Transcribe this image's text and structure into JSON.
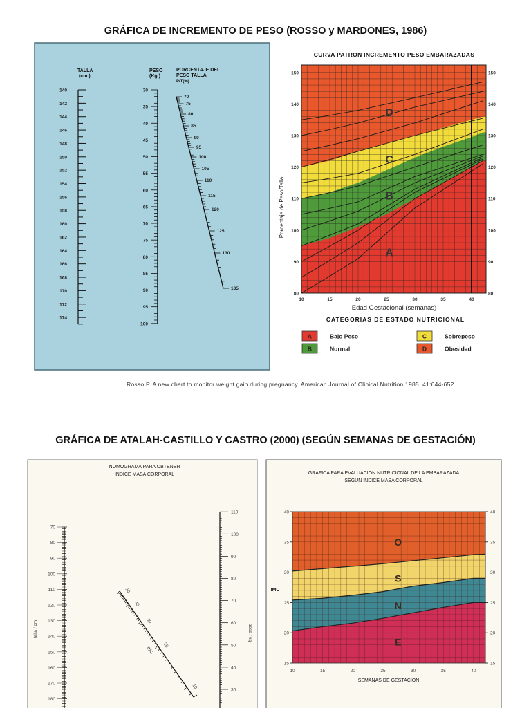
{
  "titles": {
    "top": "GRÁFICA DE INCREMENTO DE PESO (ROSSO y MARDONES, 1986)",
    "citation": "Rosso P. A new chart to monitor weight gain during pregnancy. American Journal of Clinical Nutrition 1985. 41:644-652",
    "bottom": "GRÁFICA DE ATALAH-CASTILLO Y CASTRO (2000) (SEGÚN SEMANAS DE GESTACIÓN)"
  },
  "nomogram_rosso": {
    "background": "#a9d2de",
    "talla_label": "TALLA",
    "talla_unit": "(cm.)",
    "peso_label": "PESO",
    "peso_unit": "(Kg.)",
    "pt_label1": "PORCENTAJE DEL",
    "pt_label2": "PESO TALLA",
    "pt_label3": "P/T(%)",
    "talla_ticks": [
      140,
      142,
      144,
      146,
      148,
      150,
      152,
      154,
      156,
      158,
      160,
      162,
      164,
      166,
      168,
      170,
      172,
      174
    ],
    "peso_ticks": [
      30,
      35,
      40,
      45,
      50,
      55,
      60,
      65,
      70,
      75,
      80,
      85,
      90,
      95,
      100
    ],
    "pt_ticks": [
      70,
      75,
      80,
      85,
      90,
      95,
      100,
      105,
      110,
      115,
      120,
      125,
      130,
      135
    ]
  },
  "nomogram_imc": {
    "background": "#fbf8ef",
    "title1": "NOMOGRAMA PARA OBTENER",
    "title2": "INDICE MASA CORPORAL",
    "talla_label": "talla / cm",
    "peso_label": "peso / kg",
    "imc_label": "IMC",
    "talla_ticks": [
      70,
      80,
      90,
      100,
      110,
      120,
      130,
      140,
      150,
      160,
      170,
      180
    ],
    "peso_ticks": [
      30,
      40,
      50,
      60,
      70,
      80,
      90,
      100,
      110
    ],
    "imc_ticks": [
      50,
      40,
      30,
      20,
      10
    ]
  },
  "chart_data": [
    {
      "type": "area",
      "title": "CURVA PATRON INCREMENTO PESO EMBARAZADAS",
      "xlabel": "Edad Gestacional (semanas)",
      "ylabel": "Porcentaje de Peso/Talla",
      "xlim": [
        10,
        42
      ],
      "ylim": [
        80,
        150
      ],
      "x_ticks": [
        10,
        15,
        20,
        25,
        30,
        35,
        40
      ],
      "y_ticks": [
        80,
        90,
        100,
        110,
        120,
        130,
        140,
        150
      ],
      "grid": true,
      "boundary_x": [
        10,
        15,
        20,
        25,
        30,
        35,
        40,
        42
      ],
      "boundaries": {
        "A_B": [
          95,
          97.5,
          101,
          105,
          110,
          115,
          120,
          122
        ],
        "B_C": [
          110,
          112,
          115,
          119,
          123,
          126.5,
          129.5,
          131
        ],
        "C_D": [
          120,
          122,
          125,
          127.5,
          130,
          132.5,
          135,
          136
        ]
      },
      "curves_x": [
        10,
        20,
        30,
        42
      ],
      "curves": [
        [
          80,
          91,
          107,
          121
        ],
        [
          85,
          96,
          110,
          122
        ],
        [
          90,
          100,
          112,
          122.5
        ],
        [
          95,
          102,
          113,
          123
        ],
        [
          100,
          106,
          115,
          123.5
        ],
        [
          105,
          109,
          117,
          124
        ],
        [
          110,
          114,
          120,
          127
        ],
        [
          115,
          118,
          124,
          132
        ],
        [
          120,
          125,
          130,
          135.5
        ],
        [
          125,
          129,
          134,
          141
        ],
        [
          130,
          134,
          139,
          144
        ],
        [
          135,
          138,
          142,
          147
        ]
      ],
      "region_labels": [
        "A",
        "B",
        "C",
        "D"
      ],
      "legend_title": "CATEGORIAS DE ESTADO NUTRICIONAL",
      "legend": [
        {
          "key": "A",
          "label": "Bajo Peso",
          "color": "#e23a2e"
        },
        {
          "key": "B",
          "label": "Normal",
          "color": "#4f9a3a"
        },
        {
          "key": "C",
          "label": "Sobrepeso",
          "color": "#f2dc3c"
        },
        {
          "key": "D",
          "label": "Obesidad",
          "color": "#e8582c"
        }
      ]
    },
    {
      "type": "area",
      "title": "GRAFICA PARA EVALUACION NUTRICIONAL DE LA EMBARAZADA",
      "subtitle": "SEGUN INDICE MASA CORPORAL",
      "xlabel": "SEMANAS DE GESTACION",
      "ylabel": "IMC",
      "xlim": [
        10,
        42
      ],
      "ylim": [
        15,
        40
      ],
      "x_ticks": [
        10,
        15,
        20,
        25,
        30,
        35,
        40
      ],
      "y_ticks": [
        15,
        20,
        25,
        30,
        35,
        40
      ],
      "grid": true,
      "boundary_x": [
        10,
        15,
        20,
        25,
        30,
        35,
        40,
        42
      ],
      "boundaries": {
        "E_N": [
          20.3,
          21,
          21.6,
          22.4,
          23.3,
          24.2,
          25,
          25
        ],
        "N_S": [
          25.4,
          25.7,
          26.2,
          26.8,
          27.7,
          28.3,
          29,
          29
        ],
        "S_O": [
          30.2,
          30.6,
          31,
          31.4,
          31.9,
          32.4,
          32.9,
          33
        ]
      },
      "region_labels": [
        "E",
        "N",
        "S",
        "O"
      ],
      "colors": {
        "E": "#cf2f57",
        "N": "#3f8893",
        "S": "#f1d46a",
        "O": "#e05f2b"
      }
    }
  ]
}
